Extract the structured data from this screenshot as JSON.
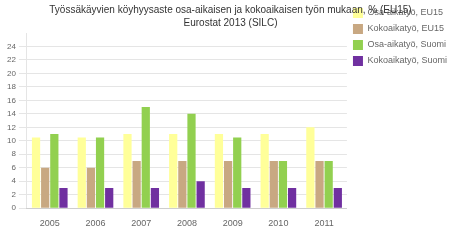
{
  "chart_data": {
    "type": "bar",
    "title": "Työssäkäyvien köyhyysaste osa-aikaisen ja kokoaikaisen työn mukaan, % (EU15)",
    "subtitle": "Eurostat 2013 (SILC)",
    "categories": [
      "2005",
      "2006",
      "2007",
      "2008",
      "2009",
      "2010",
      "2011"
    ],
    "series": [
      {
        "name": "Osa-aikatyö, EU15",
        "color": "#FFFF99",
        "values": [
          10.5,
          10.5,
          11.0,
          11.0,
          11.0,
          11.0,
          12.0
        ]
      },
      {
        "name": "Kokoaikatyö, EU15",
        "color": "#C8A882",
        "values": [
          6.0,
          6.0,
          7.0,
          7.0,
          7.0,
          7.0,
          7.0
        ]
      },
      {
        "name": "Osa-aikatyö, Suomi",
        "color": "#92D050",
        "values": [
          11.0,
          10.5,
          15.0,
          14.0,
          10.5,
          7.0,
          7.0
        ]
      },
      {
        "name": "Kokoaikatyö, Suomi",
        "color": "#7030A0",
        "values": [
          3.0,
          3.0,
          3.0,
          4.0,
          3.0,
          3.0,
          3.0
        ]
      }
    ],
    "ylim": [
      0,
      26
    ],
    "yticks": [
      0,
      2,
      4,
      6,
      8,
      10,
      12,
      14,
      16,
      18,
      20,
      22,
      24
    ],
    "grid": true,
    "legend": "right"
  }
}
